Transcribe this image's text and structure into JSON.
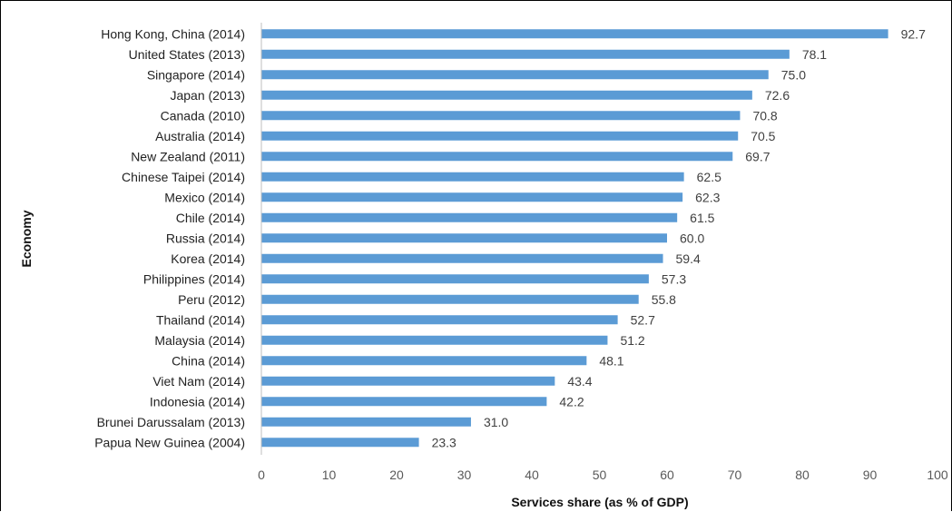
{
  "chart_data": {
    "type": "bar",
    "orientation": "horizontal",
    "categories": [
      "Hong Kong, China (2014)",
      "United States (2013)",
      "Singapore (2014)",
      "Japan (2013)",
      "Canada (2010)",
      "Australia (2014)",
      "New Zealand (2011)",
      "Chinese Taipei (2014)",
      "Mexico (2014)",
      "Chile (2014)",
      "Russia (2014)",
      "Korea (2014)",
      "Philippines (2014)",
      "Peru (2012)",
      "Thailand (2014)",
      "Malaysia (2014)",
      "China (2014)",
      "Viet Nam (2014)",
      "Indonesia (2014)",
      "Brunei Darussalam (2013)",
      "Papua New Guinea (2004)"
    ],
    "values": [
      92.7,
      78.1,
      75.0,
      72.6,
      70.8,
      70.5,
      69.7,
      62.5,
      62.3,
      61.5,
      60.0,
      59.4,
      57.3,
      55.8,
      52.7,
      51.2,
      48.1,
      43.4,
      42.2,
      31.0,
      23.3
    ],
    "value_labels": [
      "92.7",
      "78.1",
      "75.0",
      "72.6",
      "70.8",
      "70.5",
      "69.7",
      "62.5",
      "62.3",
      "61.5",
      "60.0",
      "59.4",
      "57.3",
      "55.8",
      "52.7",
      "51.2",
      "48.1",
      "43.4",
      "42.2",
      "31.0",
      "23.3"
    ],
    "title": "",
    "xlabel": "Services share (as % of GDP)",
    "ylabel": "Economy",
    "xlim": [
      0,
      100
    ],
    "xticks": [
      0,
      10,
      20,
      30,
      40,
      50,
      60,
      70,
      80,
      90,
      100
    ],
    "grid": false,
    "legend": "none",
    "bar_color": "#5b9bd5"
  }
}
